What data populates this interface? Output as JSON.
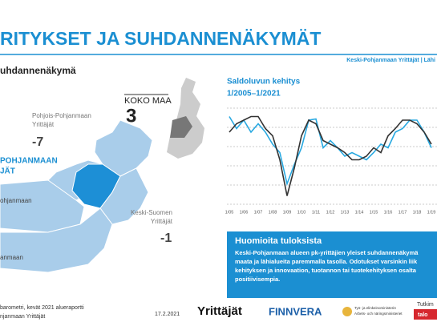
{
  "header": {
    "title": "RITYKSET JA SUHDANNENÄKYMÄT",
    "org": "Keski-Pohjanmaan Yrittäjät | Lähi",
    "section": "uhdannenäkymä"
  },
  "map": {
    "country_label": "KOKO MAA",
    "country_value": "3",
    "regions": [
      {
        "name_lines": [
          "Pohjois-Pohjanmaan",
          "Yrittäjät"
        ],
        "value": "-7"
      },
      {
        "name_lines": [
          "POHJANMAAN",
          "JÄT"
        ]
      },
      {
        "name_lines": [
          "ohjanmaan"
        ]
      },
      {
        "name_lines": [
          "Keski-Suomen",
          "Yrittäjät"
        ],
        "value": "-1"
      },
      {
        "name_lines": [
          "anmaan"
        ]
      }
    ]
  },
  "chart_data": {
    "type": "line",
    "title": "Saldoluvun kehitys",
    "subtitle": "1/2005–1/2021",
    "categories": [
      "1/05",
      null,
      "1/06",
      null,
      "1/07",
      null,
      "1/08",
      null,
      "1/09",
      null,
      "1/10",
      null,
      "1/11",
      null,
      "1/12",
      null,
      "1/13",
      null,
      "1/14",
      null,
      "1/15",
      null,
      "1/16",
      null,
      "1/17",
      null,
      "1/18",
      null,
      "1/19"
    ],
    "ylim": [
      -40,
      40
    ],
    "series": [
      {
        "color": "#29a9e1",
        "values": [
          33,
          23,
          30,
          20,
          27,
          20,
          10,
          3,
          -23,
          -7,
          7,
          30,
          31,
          7,
          13,
          7,
          0,
          3,
          0,
          -3,
          3,
          10,
          7,
          20,
          23,
          30,
          30,
          20,
          7
        ]
      },
      {
        "color": "#333333",
        "values": [
          20,
          27,
          30,
          33,
          33,
          23,
          17,
          -3,
          -33,
          -10,
          17,
          30,
          27,
          13,
          10,
          7,
          3,
          -3,
          -3,
          0,
          7,
          3,
          17,
          23,
          30,
          30,
          27,
          20,
          10
        ]
      }
    ]
  },
  "notes": {
    "title": "Huomioita tuloksista",
    "lines": [
      "Keski-Pohjanmaan alueen pk-yrittäjien yleiset suhdannenäkymä",
      "maata ja lähialueita paremmalla tasolla. Odotukset varsinkin liik",
      "kehityksen ja innovaation, tuotannon tai tuotekehityksen osalta",
      "positiivisempia."
    ]
  },
  "footer": {
    "lines": [
      "barometri, kevät 2021 alueraportti",
      "njanmaan Yrittäjät"
    ],
    "date": "17.2.2021",
    "logo1": "Yrittäjät",
    "logo2": "FINNVERA",
    "ministry": [
      "Työ- ja elinkeinoministeriö",
      "Arbets- och näringsministeriet"
    ],
    "tutkim": "Tutkim",
    "talo": "talo"
  }
}
